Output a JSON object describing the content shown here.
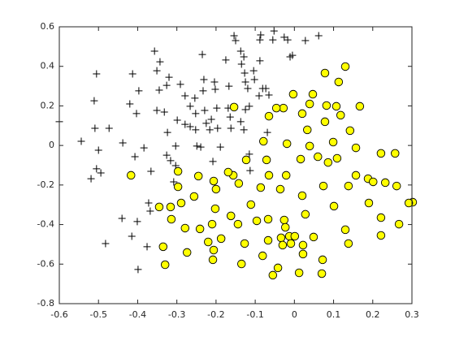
{
  "chart_data": {
    "type": "scatter",
    "xlim": [
      -0.6,
      0.3
    ],
    "ylim": [
      -0.8,
      0.6
    ],
    "xticks": [
      -0.6,
      -0.5,
      -0.4,
      -0.3,
      -0.2,
      -0.1,
      0,
      0.1,
      0.2,
      0.3
    ],
    "yticks": [
      -0.8,
      -0.6,
      -0.4,
      -0.2,
      0,
      0.2,
      0.4,
      0.6
    ],
    "grid": false,
    "series": [
      {
        "marker": "plus",
        "color": "#000000",
        "x": [
          -0.6,
          -0.544,
          -0.505,
          -0.511,
          -0.509,
          -0.473,
          -0.5,
          -0.519,
          -0.505,
          -0.494,
          -0.482,
          -0.413,
          -0.438,
          -0.42,
          -0.397,
          -0.403,
          -0.407,
          -0.384,
          -0.366,
          -0.372,
          -0.368,
          -0.415,
          -0.44,
          -0.401,
          -0.399,
          -0.376,
          -0.357,
          -0.351,
          -0.343,
          -0.345,
          -0.351,
          -0.332,
          -0.326,
          -0.32,
          -0.324,
          -0.326,
          -0.316,
          -0.303,
          -0.303,
          -0.308,
          -0.291,
          -0.279,
          -0.299,
          -0.279,
          -0.266,
          -0.266,
          -0.254,
          -0.252,
          -0.252,
          -0.249,
          -0.239,
          -0.235,
          -0.231,
          -0.233,
          -0.229,
          -0.225,
          -0.208,
          -0.204,
          -0.202,
          -0.198,
          -0.196,
          -0.175,
          -0.167,
          -0.169,
          -0.164,
          -0.162,
          -0.154,
          -0.15,
          -0.137,
          -0.135,
          -0.129,
          -0.127,
          -0.125,
          -0.125,
          -0.137,
          -0.129,
          -0.119,
          -0.115,
          -0.104,
          -0.102,
          -0.09,
          -0.081,
          -0.086,
          -0.088,
          -0.088,
          -0.073,
          -0.055,
          -0.052,
          -0.017,
          -0.005,
          0.028,
          0.062,
          -0.069,
          -0.113,
          -0.115,
          -0.065,
          -0.026,
          -0.011,
          -0.189,
          -0.212,
          -0.216
        ],
        "y": [
          0.12,
          0.021,
          0.362,
          0.226,
          0.087,
          0.087,
          -0.024,
          -0.168,
          -0.118,
          -0.139,
          -0.496,
          0.362,
          0.013,
          0.21,
          0.276,
          0.161,
          -0.057,
          -0.012,
          -0.131,
          -0.291,
          -0.332,
          -0.459,
          -0.369,
          -0.385,
          -0.627,
          -0.512,
          0.477,
          0.378,
          0.423,
          0.28,
          0.177,
          0.169,
          0.304,
          0.345,
          0.066,
          -0.049,
          -0.077,
          -0.003,
          -0.102,
          -0.184,
          0.309,
          0.251,
          0.128,
          0.107,
          0.198,
          0.095,
          0.239,
          0.161,
          0.079,
          -0.003,
          -0.008,
          0.46,
          0.333,
          0.276,
          0.177,
          0.112,
          -0.081,
          0.321,
          0.284,
          0.189,
          0.087,
          0.432,
          0.3,
          0.189,
          0.144,
          0.087,
          0.555,
          0.53,
          0.477,
          0.411,
          0.448,
          0.366,
          0.321,
          0.181,
          0.12,
          0.079,
          0.288,
          0.198,
          0.378,
          0.333,
          0.251,
          0.288,
          0.559,
          0.534,
          0.428,
          0.288,
          0.534,
          0.579,
          0.534,
          0.456,
          0.53,
          0.555,
          0.066,
          -0.127,
          -0.044,
          0.255,
          0.547,
          0.448,
          -0.008,
          0.132,
          0.079
        ]
      },
      {
        "marker": "circle",
        "color": "#ffff00",
        "x": [
          0.13,
          0.078,
          0.113,
          -0.003,
          0.047,
          0.039,
          -0.028,
          0.082,
          0.167,
          0.107,
          -0.154,
          -0.065,
          -0.046,
          0.118,
          0.02,
          0.078,
          0.033,
          0.142,
          -0.079,
          -0.019,
          0.099,
          0.06,
          0.039,
          0.086,
          0.109,
          0.157,
          0.221,
          0.257,
          -0.123,
          -0.156,
          -0.071,
          0.016,
          -0.417,
          -0.297,
          -0.065,
          -0.021,
          -0.169,
          0.157,
          0.188,
          0.261,
          -0.245,
          -0.206,
          -0.142,
          0.074,
          0.138,
          0.201,
          0.232,
          0.302,
          0.292,
          -0.297,
          -0.256,
          -0.2,
          -0.086,
          -0.036,
          0.02,
          0.19,
          -0.345,
          -0.316,
          -0.289,
          -0.202,
          -0.111,
          0.101,
          -0.162,
          -0.067,
          -0.026,
          0.028,
          0.221,
          -0.279,
          -0.21,
          -0.144,
          -0.096,
          -0.023,
          -0.013,
          0.267,
          -0.314,
          -0.241,
          -0.22,
          -0.187,
          -0.034,
          0.001,
          0.049,
          0.13,
          -0.03,
          -0.009,
          0.138,
          0.221,
          -0.335,
          -0.274,
          -0.127,
          -0.067,
          0.022,
          -0.206,
          -0.081,
          -0.208,
          -0.135,
          -0.33,
          0.022,
          0.012,
          0.072,
          -0.042,
          0.07,
          -0.055
        ],
        "y": [
          0.399,
          0.366,
          0.321,
          0.259,
          0.259,
          0.21,
          0.189,
          0.202,
          0.198,
          0.198,
          0.194,
          0.148,
          0.189,
          0.153,
          0.161,
          0.12,
          0.079,
          0.075,
          0.021,
          0.009,
          0.017,
          -0.057,
          -0.003,
          -0.086,
          -0.065,
          -0.012,
          -0.04,
          -0.04,
          -0.073,
          -0.151,
          -0.073,
          -0.069,
          -0.151,
          -0.131,
          -0.151,
          -0.151,
          -0.135,
          -0.151,
          -0.168,
          -0.205,
          -0.155,
          -0.18,
          -0.192,
          -0.205,
          -0.205,
          -0.184,
          -0.188,
          -0.287,
          -0.291,
          -0.209,
          -0.258,
          -0.221,
          -0.213,
          -0.221,
          -0.254,
          -0.291,
          -0.311,
          -0.311,
          -0.291,
          -0.32,
          -0.299,
          -0.307,
          -0.356,
          -0.373,
          -0.377,
          -0.348,
          -0.365,
          -0.418,
          -0.398,
          -0.398,
          -0.381,
          -0.414,
          -0.459,
          -0.398,
          -0.373,
          -0.422,
          -0.488,
          -0.471,
          -0.467,
          -0.459,
          -0.463,
          -0.426,
          -0.504,
          -0.496,
          -0.496,
          -0.455,
          -0.512,
          -0.541,
          -0.496,
          -0.48,
          -0.504,
          -0.529,
          -0.558,
          -0.578,
          -0.599,
          -0.603,
          -0.549,
          -0.644,
          -0.578,
          -0.619,
          -0.648,
          -0.656
        ]
      }
    ]
  }
}
